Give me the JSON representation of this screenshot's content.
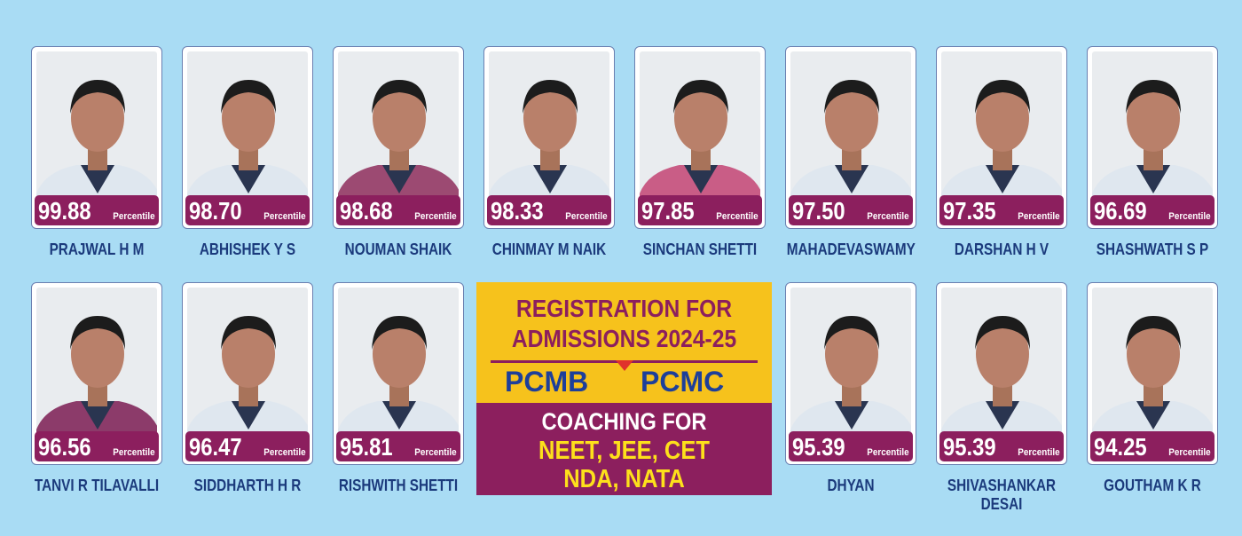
{
  "percentile_label": "Percentile",
  "students": [
    {
      "name": "PRAJWAL H M",
      "score": "99.88"
    },
    {
      "name": "ABHISHEK Y S",
      "score": "98.70"
    },
    {
      "name": "NOUMAN SHAIK",
      "score": "98.68"
    },
    {
      "name": "CHINMAY M NAIK",
      "score": "98.33"
    },
    {
      "name": "SINCHAN SHETTI",
      "score": "97.85"
    },
    {
      "name": "MAHADEVASWAMY",
      "score": "97.50"
    },
    {
      "name": "DARSHAN H V",
      "score": "97.35"
    },
    {
      "name": "SHASHWATH S P",
      "score": "96.69"
    },
    {
      "name": "TANVI R TILAVALLI",
      "score": "96.56"
    },
    {
      "name": "SIDDHARTH H R",
      "score": "96.47"
    },
    {
      "name": "RISHWITH SHETTI",
      "score": "95.81"
    },
    {
      "name": "DHYAN",
      "score": "95.39"
    },
    {
      "name": "SHIVASHANKAR DESAI",
      "score": "95.39"
    },
    {
      "name": "GOUTHAM K R",
      "score": "94.25"
    }
  ],
  "promo": {
    "line1": "REGISTRATION FOR",
    "line2": "ADMISSIONS 2024-25",
    "course1": "PCMB",
    "course2": "PCMC",
    "coaching": "COACHING FOR",
    "exams1": "NEET, JEE, CET",
    "exams2": "NDA, NATA"
  }
}
